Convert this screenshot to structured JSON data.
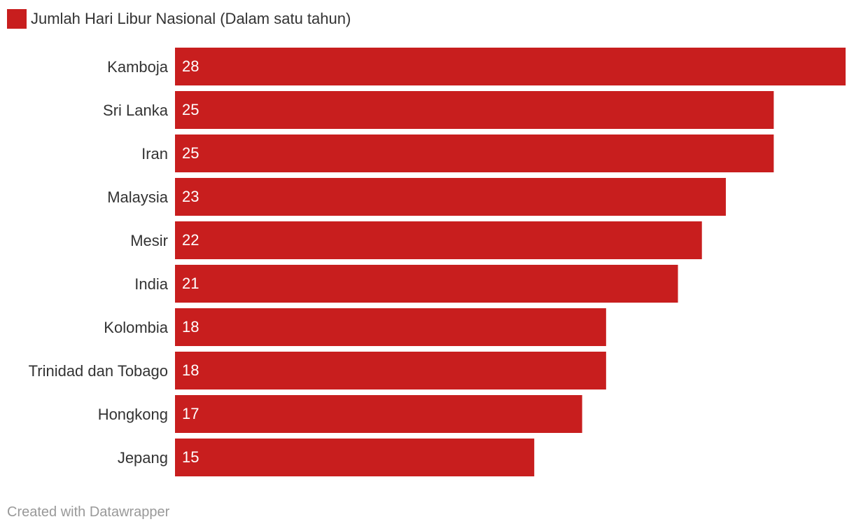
{
  "legend": {
    "label": "Jumlah Hari Libur Nasional (Dalam satu tahun)",
    "color": "#c81e1e"
  },
  "footer": {
    "credit": "Created with Datawrapper"
  },
  "chart_data": {
    "type": "bar",
    "orientation": "horizontal",
    "categories": [
      "Kamboja",
      "Sri Lanka",
      "Iran",
      "Malaysia",
      "Mesir",
      "India",
      "Kolombia",
      "Trinidad dan Tobago",
      "Hongkong",
      "Jepang"
    ],
    "series": [
      {
        "name": "Jumlah Hari Libur Nasional (Dalam satu tahun)",
        "values": [
          28,
          25,
          25,
          23,
          22,
          21,
          18,
          18,
          17,
          15
        ]
      }
    ],
    "data_labels": [
      "28",
      "25",
      "25",
      "23",
      "22",
      "21",
      "18",
      "18",
      "17",
      "15"
    ],
    "xlim": [
      0,
      28
    ],
    "grid": false,
    "legend_position": "top-left",
    "bar_color": "#c81e1e",
    "label_color": "#ffffff"
  }
}
